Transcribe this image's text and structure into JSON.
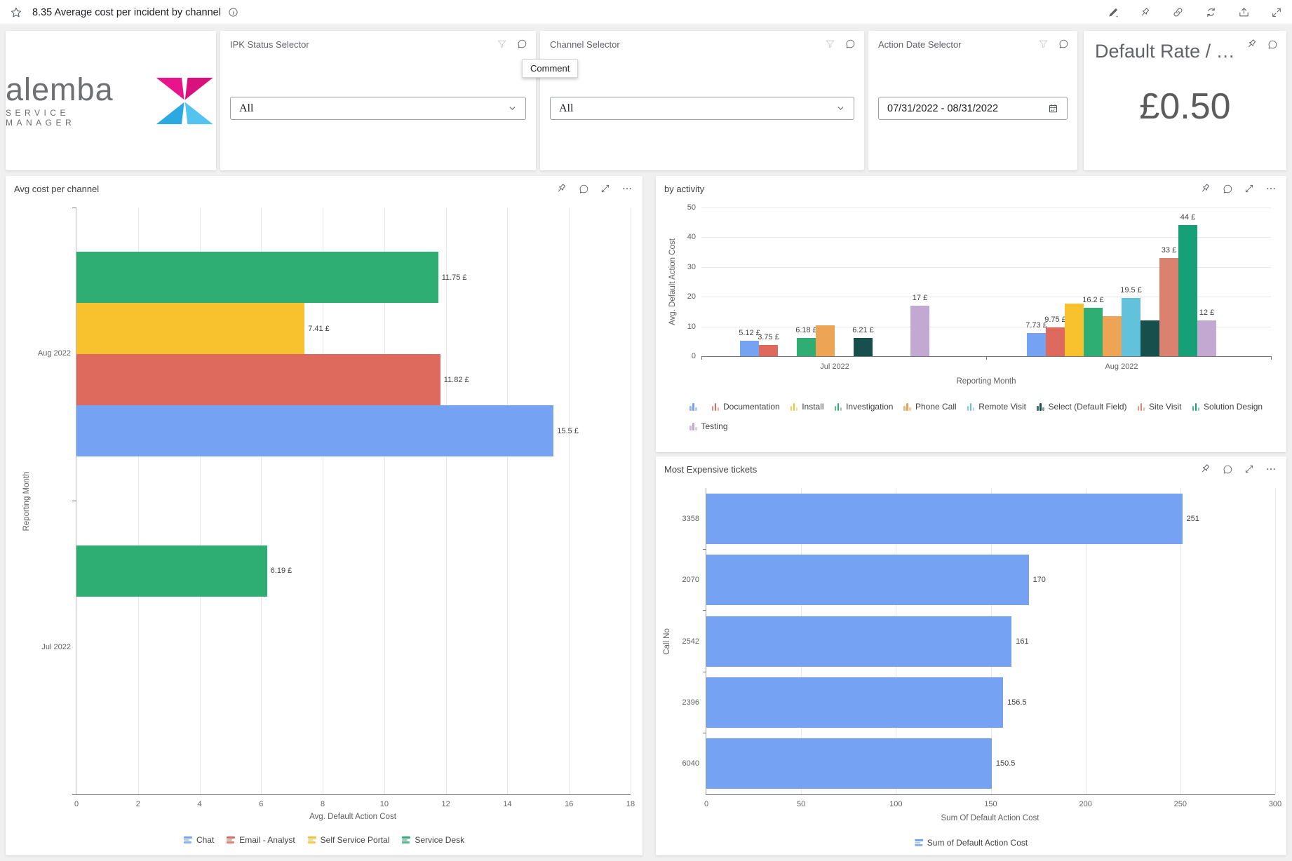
{
  "topbar": {
    "title": "8.35 Average cost per incident by channel",
    "icons": [
      "edit",
      "pin",
      "link",
      "refresh",
      "export",
      "expand"
    ]
  },
  "tooltip": {
    "text": "Comment"
  },
  "logo": {
    "brand": "alemba",
    "subtitle": "SERVICE MANAGER"
  },
  "selectors": {
    "ipk": {
      "title": "IPK Status Selector",
      "value": "All",
      "icons": [
        "filter",
        "comment"
      ]
    },
    "channel": {
      "title": "Channel Selector",
      "value": "All",
      "icons": [
        "filter",
        "comment"
      ]
    },
    "action_date": {
      "title": "Action Date Selector",
      "value": "07/31/2022 - 08/31/2022",
      "icons": [
        "filter",
        "comment"
      ]
    }
  },
  "kpi": {
    "title": "Default Rate / …",
    "value": "£0.50",
    "icons": [
      "pin",
      "comment"
    ]
  },
  "chart_header_icons": [
    "pin",
    "comment",
    "open-full",
    "more"
  ],
  "colors": {
    "accent_blue": "#76A2F4",
    "page_bg": "#f0f0f1",
    "card_bg": "#ffffff"
  },
  "chart_data": [
    {
      "id": "avg_cost_per_channel",
      "type": "bar-horizontal-grouped",
      "title": "Avg cost per channel",
      "xlabel": "Avg. Default Action Cost",
      "ylabel": "Reporting Month",
      "xlim": [
        0,
        18
      ],
      "xticks": [
        0,
        2,
        4,
        6,
        8,
        10,
        12,
        14,
        16,
        18
      ],
      "grid": true,
      "legend_position": "bottom",
      "groups": [
        {
          "category": "Aug 2022",
          "bars": [
            {
              "series": "Service Desk",
              "value": 11.75,
              "label": "11.75 £"
            },
            {
              "series": "Self Service Portal",
              "value": 7.41,
              "label": "7.41 £"
            },
            {
              "series": "Email - Analyst",
              "value": 11.82,
              "label": "11.82 £"
            },
            {
              "series": "Chat",
              "value": 15.5,
              "label": "15.5 £"
            }
          ]
        },
        {
          "category": "Jul 2022",
          "bars": [
            {
              "series": "Service Desk",
              "value": 6.19,
              "label": "6.19 £"
            },
            null,
            null,
            null
          ]
        }
      ],
      "legend": [
        {
          "name": "Chat",
          "color": "#76A2F4"
        },
        {
          "name": "Email - Analyst",
          "color": "#DE6A5E"
        },
        {
          "name": "Self Service Portal",
          "color": "#F8C12E"
        },
        {
          "name": "Service Desk",
          "color": "#2FAE73"
        }
      ]
    },
    {
      "id": "by_activity",
      "type": "column-grouped",
      "title": "by activity",
      "xlabel": "Reporting Month",
      "ylabel": "Avg. Default Action Cost",
      "ylim": [
        0,
        50
      ],
      "yticks": [
        0,
        10,
        20,
        30,
        40,
        50
      ],
      "grid": true,
      "legend_position": "bottom",
      "series": [
        {
          "name": "",
          "color": "#76A2F4"
        },
        {
          "name": "Documentation",
          "color": "#DE6A5E"
        },
        {
          "name": "Install",
          "color": "#F8C12E"
        },
        {
          "name": "Investigation",
          "color": "#2FAE73"
        },
        {
          "name": "Phone Call",
          "color": "#EDA455"
        },
        {
          "name": "Remote Visit",
          "color": "#62C1DB"
        },
        {
          "name": "Select (Default Field)",
          "color": "#164F4C"
        },
        {
          "name": "Site Visit",
          "color": "#DB8170"
        },
        {
          "name": "Solution Design",
          "color": "#16A077"
        },
        {
          "name": "Testing",
          "color": "#C3A8D1"
        }
      ],
      "groups": [
        {
          "category": "Jul 2022",
          "values": [
            5.12,
            3.75,
            null,
            6.18,
            10.4,
            null,
            6.21,
            null,
            null,
            17
          ],
          "labels": [
            "5.12 £",
            "3.75 £",
            null,
            "6.18 £",
            null,
            null,
            "6.21 £",
            null,
            null,
            "17 £"
          ]
        },
        {
          "category": "Aug 2022",
          "values": [
            7.73,
            9.75,
            17.6,
            16.2,
            13.4,
            19.5,
            12,
            33,
            44,
            12
          ],
          "labels": [
            "7.73 £",
            "9.75 £",
            null,
            "16.2 £",
            null,
            "19.5 £",
            null,
            "33 £",
            "44 £",
            "12 £"
          ]
        }
      ],
      "legend_rows": [
        [
          0,
          1,
          2,
          3,
          4,
          5,
          6,
          7,
          8
        ],
        [
          9
        ]
      ]
    },
    {
      "id": "most_expensive_tickets",
      "type": "bar-horizontal",
      "title": "Most Expensive tickets",
      "xlabel": "Sum Of Default Action Cost",
      "ylabel": "Call No",
      "xlim": [
        0,
        300
      ],
      "xticks": [
        0,
        50,
        100,
        150,
        200,
        250,
        300
      ],
      "grid": true,
      "bar_color": "#76A2F4",
      "categories": [
        "3358",
        "2070",
        "2542",
        "2396",
        "6040"
      ],
      "values": [
        251,
        170,
        161,
        156.5,
        150.5
      ],
      "labels": [
        "251",
        "170",
        "161",
        "156.5",
        "150.5"
      ],
      "legend": [
        {
          "name": "Sum of Default Action Cost",
          "color": "#76A2F4"
        }
      ],
      "legend_position": "bottom"
    }
  ]
}
